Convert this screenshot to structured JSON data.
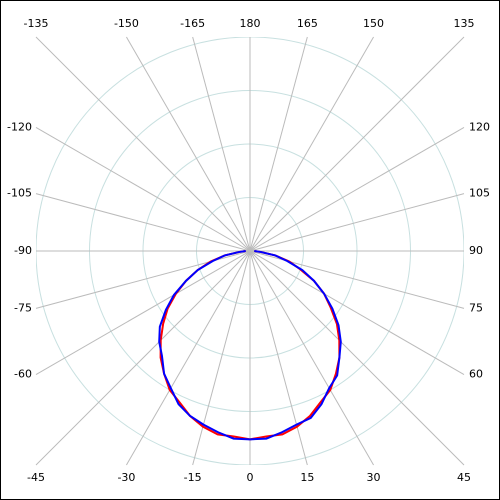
{
  "chart_data": {
    "type": "polar",
    "x": [
      -90,
      -85,
      -80,
      -75,
      -70,
      -65,
      -60,
      -55,
      -50,
      -45,
      -40,
      -35,
      -30,
      -25,
      -20,
      -15,
      -10,
      -5,
      0,
      5,
      10,
      15,
      20,
      25,
      30,
      35,
      40,
      45,
      50,
      55,
      60,
      65,
      70,
      75,
      80,
      85,
      90
    ],
    "series": [
      {
        "color": "#ff0000",
        "values": [
          0.02,
          0.05,
          0.12,
          0.19,
          0.26,
          0.33,
          0.4,
          0.47,
          0.53,
          0.59,
          0.65,
          0.7,
          0.75,
          0.78,
          0.82,
          0.85,
          0.87,
          0.87,
          0.88,
          0.87,
          0.87,
          0.85,
          0.82,
          0.78,
          0.75,
          0.7,
          0.65,
          0.59,
          0.53,
          0.46,
          0.4,
          0.33,
          0.25,
          0.19,
          0.12,
          0.05,
          0.02
        ]
      },
      {
        "color": "#0000ff",
        "values": [
          0.02,
          0.05,
          0.12,
          0.18,
          0.26,
          0.33,
          0.41,
          0.48,
          0.55,
          0.6,
          0.64,
          0.7,
          0.74,
          0.79,
          0.82,
          0.84,
          0.86,
          0.88,
          0.88,
          0.88,
          0.86,
          0.84,
          0.83,
          0.79,
          0.74,
          0.71,
          0.65,
          0.6,
          0.54,
          0.47,
          0.4,
          0.33,
          0.26,
          0.18,
          0.12,
          0.05,
          0.02
        ]
      }
    ],
    "rlim": [
      0,
      1
    ],
    "rticks": [
      0.25,
      0.5,
      0.75,
      1
    ],
    "angle_ticks": [
      0,
      15,
      30,
      45,
      60,
      75,
      90,
      105,
      120,
      135,
      150,
      165,
      180,
      -165,
      -150,
      -135,
      -120,
      -105,
      -90,
      -75,
      -60,
      -45,
      -30,
      -15
    ],
    "grid": true
  }
}
